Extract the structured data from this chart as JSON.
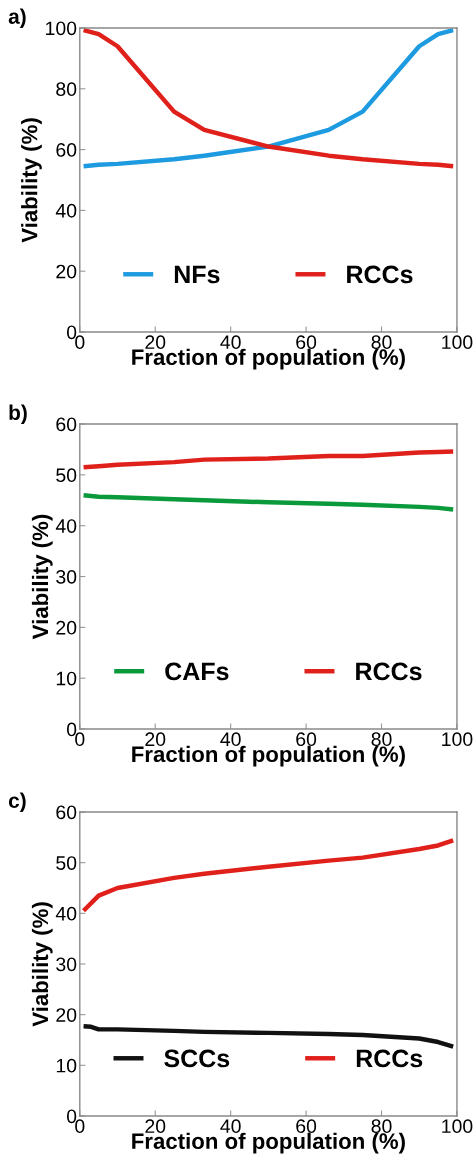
{
  "chart_data": [
    {
      "type": "line",
      "title": "a)",
      "xlabel": "Fraction of population (%)",
      "ylabel": "Viability (%)",
      "xlim": [
        0,
        100
      ],
      "ylim": [
        0,
        100
      ],
      "xticks": [
        0,
        20,
        40,
        60,
        80,
        100
      ],
      "yticks": [
        0,
        20,
        40,
        60,
        80,
        100
      ],
      "grid": false,
      "legend": "bottom",
      "x": [
        1,
        5,
        10,
        25,
        33,
        50,
        66,
        75,
        90,
        95,
        99
      ],
      "series": [
        {
          "name": "NFs",
          "color": "#1e9be0",
          "values": [
            54.5,
            55,
            55.3,
            56.8,
            58,
            61,
            66.5,
            72.5,
            94,
            98,
            99.3
          ]
        },
        {
          "name": "RCCs",
          "color": "#e0201b",
          "values": [
            99.3,
            98,
            94,
            72.5,
            66.5,
            61,
            58,
            56.8,
            55.3,
            55,
            54.5
          ]
        }
      ]
    },
    {
      "type": "line",
      "title": "b)",
      "xlabel": "Fraction of population (%)",
      "ylabel": "Viability (%)",
      "xlim": [
        0,
        100
      ],
      "ylim": [
        0,
        60
      ],
      "xticks": [
        0,
        20,
        40,
        60,
        80,
        100
      ],
      "yticks": [
        0,
        10,
        20,
        30,
        40,
        50,
        60
      ],
      "grid": false,
      "legend": "bottom",
      "x": [
        1,
        5,
        10,
        25,
        33,
        50,
        66,
        75,
        90,
        95,
        99
      ],
      "series": [
        {
          "name": "CAFs",
          "color": "#0a9a3c",
          "values": [
            46,
            45.7,
            45.6,
            45.2,
            45,
            44.6,
            44.3,
            44.1,
            43.7,
            43.5,
            43.2
          ]
        },
        {
          "name": "RCCs",
          "color": "#e0201b",
          "values": [
            51.5,
            51.7,
            52,
            52.5,
            53,
            53.2,
            53.7,
            53.7,
            54.4,
            54.5,
            54.6
          ]
        }
      ]
    },
    {
      "type": "line",
      "title": "c)",
      "xlabel": "Fraction of population (%)",
      "ylabel": "Viability (%)",
      "xlim": [
        0,
        100
      ],
      "ylim": [
        0,
        60
      ],
      "xticks": [
        0,
        20,
        40,
        60,
        80,
        100
      ],
      "yticks": [
        0,
        10,
        20,
        30,
        40,
        50,
        60
      ],
      "grid": false,
      "legend": "bottom",
      "series": [
        {
          "name": "SCCs",
          "color": "#111111",
          "x": [
            1,
            3,
            5,
            10,
            25,
            33,
            50,
            66,
            75,
            90,
            95,
            99
          ],
          "values": [
            17.7,
            17.6,
            17.1,
            17.1,
            16.8,
            16.6,
            16.4,
            16.2,
            16.0,
            15.3,
            14.6,
            13.7
          ]
        },
        {
          "name": "RCCs",
          "color": "#e0201b",
          "x": [
            1,
            5,
            10,
            25,
            33,
            50,
            66,
            75,
            90,
            95,
            99
          ],
          "values": [
            40.5,
            43.5,
            45,
            47,
            47.8,
            49.2,
            50.4,
            51,
            52.7,
            53.4,
            54.4
          ]
        }
      ]
    }
  ]
}
